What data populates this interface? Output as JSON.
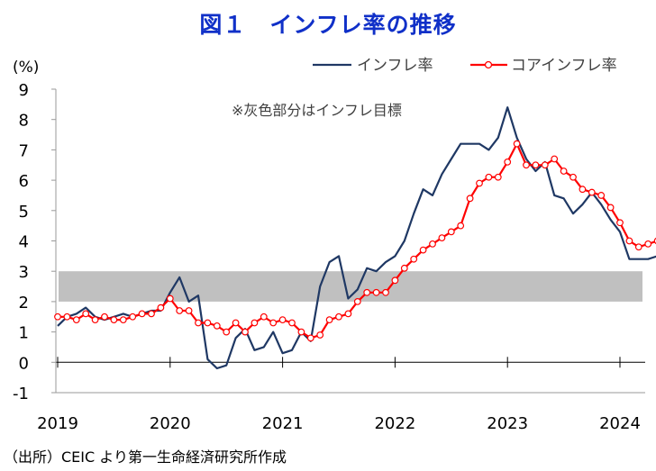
{
  "chart_data": {
    "type": "line",
    "title": "図１　インフレ率の推移",
    "ylabel": "(%)",
    "ylim": [
      -1,
      9
    ],
    "yticks": [
      "9",
      "8",
      "7",
      "6",
      "5",
      "4",
      "3",
      "2",
      "1",
      "0",
      "-1"
    ],
    "xticks": [
      "2019",
      "2020",
      "2021",
      "2022",
      "2023",
      "2024"
    ],
    "x_start": "2019-01",
    "band": {
      "from": 2,
      "to": 3,
      "color": "#c0c0c0",
      "annotation": "※灰色部分はインフレ目標"
    },
    "series": [
      {
        "name": "インフレ率",
        "color": "#1f3864",
        "marker": "none",
        "values": [
          1.2,
          1.5,
          1.6,
          1.8,
          1.5,
          1.4,
          1.5,
          1.6,
          1.5,
          1.6,
          1.7,
          1.7,
          2.3,
          2.8,
          2.0,
          2.2,
          0.1,
          -0.2,
          -0.1,
          0.8,
          1.1,
          0.4,
          0.5,
          1.0,
          0.3,
          0.4,
          1.0,
          0.7,
          2.5,
          3.3,
          3.5,
          2.1,
          2.4,
          3.1,
          3.0,
          3.3,
          3.5,
          4.0,
          4.9,
          5.7,
          5.5,
          6.2,
          6.7,
          7.2,
          7.2,
          7.2,
          7.0,
          7.4,
          8.4,
          7.4,
          6.7,
          6.3,
          6.6,
          5.5,
          5.4,
          4.9,
          5.2,
          5.6,
          5.2,
          4.7,
          4.3,
          3.4,
          3.4,
          3.4,
          3.5
        ]
      },
      {
        "name": "コアインフレ率",
        "color": "#ff0000",
        "marker": "circle",
        "values": [
          1.5,
          1.5,
          1.4,
          1.6,
          1.4,
          1.5,
          1.4,
          1.4,
          1.5,
          1.6,
          1.6,
          1.8,
          2.1,
          1.7,
          1.7,
          1.3,
          1.3,
          1.2,
          1.0,
          1.3,
          1.0,
          1.3,
          1.5,
          1.3,
          1.4,
          1.3,
          1.0,
          0.8,
          0.9,
          1.4,
          1.5,
          1.6,
          2.0,
          2.3,
          2.3,
          2.3,
          2.7,
          3.1,
          3.4,
          3.7,
          3.9,
          4.1,
          4.3,
          4.5,
          5.4,
          5.9,
          6.1,
          6.1,
          6.6,
          7.2,
          6.5,
          6.5,
          6.5,
          6.7,
          6.3,
          6.1,
          5.7,
          5.6,
          5.5,
          5.1,
          4.6,
          4.0,
          3.8,
          3.9,
          4.0
        ]
      }
    ]
  },
  "source_note": "（出所）CEIC より第一生命経済研究所作成"
}
